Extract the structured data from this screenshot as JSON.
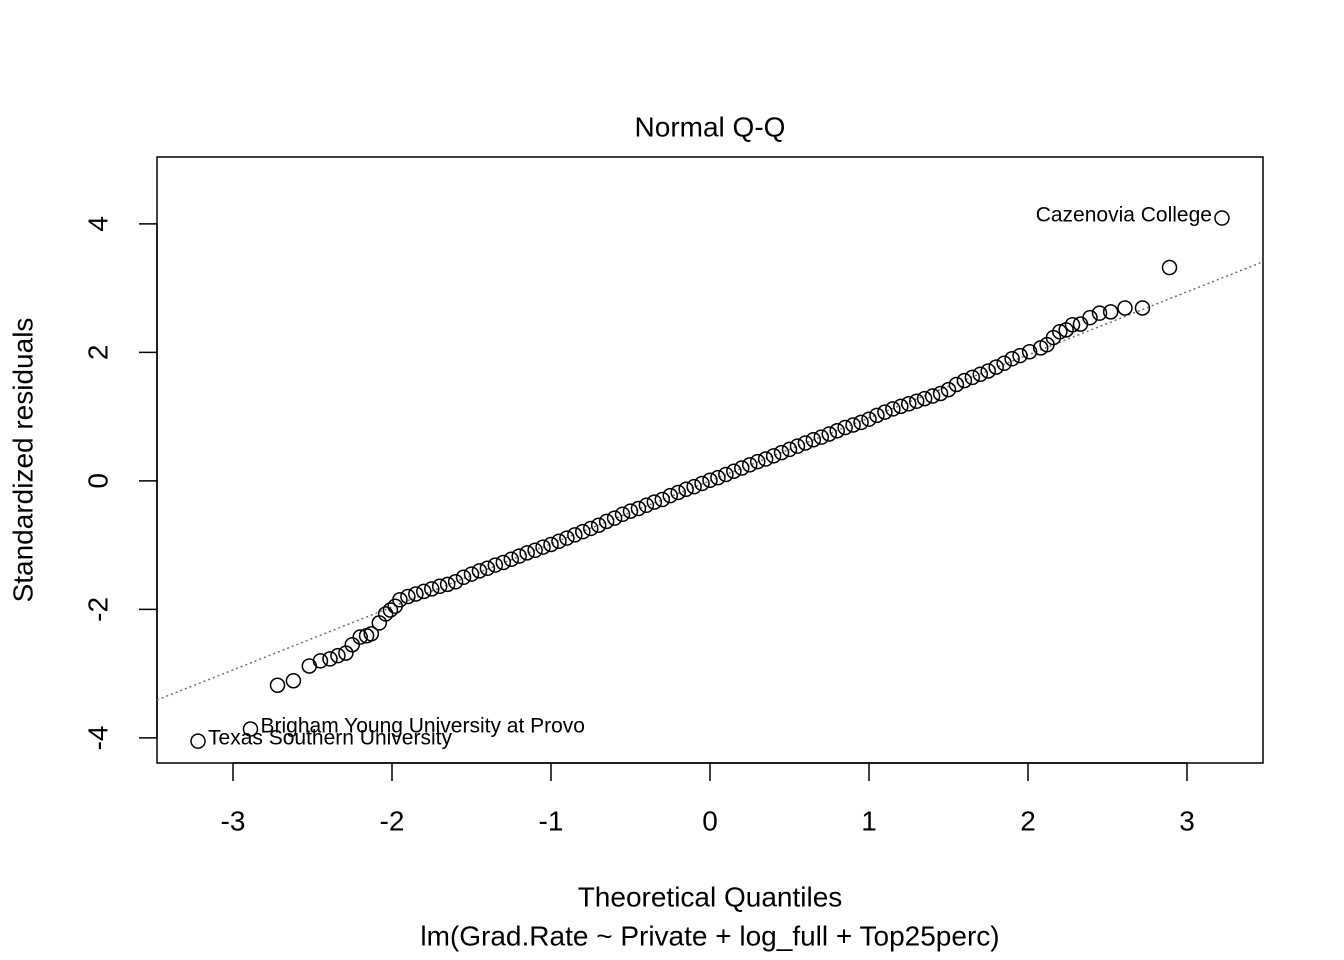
{
  "chart_data": {
    "type": "scatter",
    "title": "Normal Q-Q",
    "xlabel": "Theoretical Quantiles",
    "subtitle": "lm(Grad.Rate ~ Private + log_full + Top25perc)",
    "ylabel": "Standardized residuals",
    "xlim": [
      -3.478,
      3.478
    ],
    "ylim": [
      -4.39,
      5.04
    ],
    "xticks": [
      -3,
      -2,
      -1,
      0,
      1,
      2,
      3
    ],
    "yticks": [
      -4,
      -2,
      0,
      2,
      4
    ],
    "color": "#000000",
    "line_color": "#6e6e6e",
    "x": [
      -3.22,
      -2.89,
      -2.72,
      -2.62,
      -2.52,
      -2.45,
      -2.39,
      -2.34,
      -2.29,
      -2.25,
      -2.2,
      -2.16,
      -2.13,
      -2.08,
      -2.04,
      -2.01,
      -1.98,
      -1.95,
      -1.9,
      -1.85,
      -1.8,
      -1.75,
      -1.7,
      -1.65,
      -1.6,
      -1.55,
      -1.5,
      -1.45,
      -1.4,
      -1.35,
      -1.3,
      -1.25,
      -1.2,
      -1.15,
      -1.1,
      -1.05,
      -1.0,
      -0.95,
      -0.9,
      -0.85,
      -0.8,
      -0.75,
      -0.7,
      -0.65,
      -0.6,
      -0.55,
      -0.5,
      -0.45,
      -0.4,
      -0.35,
      -0.3,
      -0.25,
      -0.2,
      -0.15,
      -0.1,
      -0.05,
      0,
      0.05,
      0.1,
      0.15,
      0.2,
      0.25,
      0.3,
      0.35,
      0.4,
      0.45,
      0.5,
      0.55,
      0.6,
      0.65,
      0.7,
      0.75,
      0.8,
      0.85,
      0.9,
      0.95,
      1.0,
      1.05,
      1.1,
      1.15,
      1.2,
      1.25,
      1.3,
      1.35,
      1.4,
      1.45,
      1.5,
      1.55,
      1.6,
      1.65,
      1.7,
      1.75,
      1.8,
      1.85,
      1.9,
      1.95,
      2.01,
      2.08,
      2.12,
      2.16,
      2.2,
      2.24,
      2.28,
      2.33,
      2.39,
      2.45,
      2.52,
      2.61,
      2.72,
      2.89,
      3.22
    ],
    "values": [
      -4.05,
      -3.86,
      -3.18,
      -3.11,
      -2.88,
      -2.8,
      -2.77,
      -2.72,
      -2.68,
      -2.55,
      -2.43,
      -2.41,
      -2.38,
      -2.21,
      -2.07,
      -2.01,
      -1.95,
      -1.85,
      -1.8,
      -1.76,
      -1.72,
      -1.68,
      -1.64,
      -1.61,
      -1.57,
      -1.5,
      -1.45,
      -1.4,
      -1.36,
      -1.31,
      -1.27,
      -1.22,
      -1.17,
      -1.12,
      -1.08,
      -1.03,
      -0.99,
      -0.94,
      -0.89,
      -0.84,
      -0.79,
      -0.74,
      -0.69,
      -0.63,
      -0.58,
      -0.52,
      -0.47,
      -0.43,
      -0.38,
      -0.33,
      -0.29,
      -0.23,
      -0.18,
      -0.13,
      -0.09,
      -0.04,
      0.01,
      0.05,
      0.1,
      0.15,
      0.2,
      0.25,
      0.3,
      0.34,
      0.39,
      0.44,
      0.49,
      0.54,
      0.59,
      0.64,
      0.68,
      0.73,
      0.78,
      0.83,
      0.87,
      0.91,
      0.96,
      1.02,
      1.07,
      1.12,
      1.16,
      1.2,
      1.24,
      1.28,
      1.32,
      1.36,
      1.42,
      1.5,
      1.56,
      1.61,
      1.66,
      1.71,
      1.77,
      1.83,
      1.9,
      1.95,
      2.01,
      2.07,
      2.12,
      2.23,
      2.32,
      2.35,
      2.43,
      2.44,
      2.54,
      2.61,
      2.63,
      2.69,
      2.69,
      3.32,
      4.09
    ],
    "labels": [
      "Texas Southern University",
      "Brigham Young University at Provo",
      null,
      null,
      null,
      null,
      null,
      null,
      null,
      null,
      null,
      null,
      null,
      null,
      null,
      null,
      null,
      null,
      null,
      null,
      null,
      null,
      null,
      null,
      null,
      null,
      null,
      null,
      null,
      null,
      null,
      null,
      null,
      null,
      null,
      null,
      null,
      null,
      null,
      null,
      null,
      null,
      null,
      null,
      null,
      null,
      null,
      null,
      null,
      null,
      null,
      null,
      null,
      null,
      null,
      null,
      null,
      null,
      null,
      null,
      null,
      null,
      null,
      null,
      null,
      null,
      null,
      null,
      null,
      null,
      null,
      null,
      null,
      null,
      null,
      null,
      null,
      null,
      null,
      null,
      null,
      null,
      null,
      null,
      null,
      null,
      null,
      null,
      null,
      null,
      null,
      null,
      null,
      null,
      null,
      null,
      null,
      null,
      null,
      null,
      null,
      null,
      null,
      null,
      null,
      null,
      null,
      null,
      null,
      null,
      "Cazenovia College"
    ],
    "reference_line": {
      "x": [
        -3.478,
        3.478
      ],
      "values": [
        -3.41,
        3.41
      ]
    }
  }
}
